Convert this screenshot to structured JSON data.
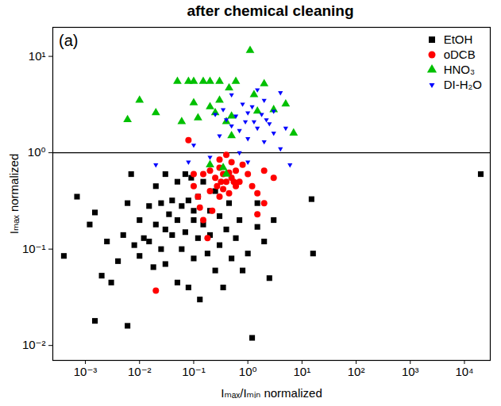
{
  "chart_data": {
    "type": "scatter",
    "title": "after chemical cleaning",
    "panel_label": "(a)",
    "x_label": "Iₘₐₓ/Iₘᵢₙ normalized",
    "y_label": "Iₘₐₓ normalized",
    "log": true,
    "xlim": [
      0.00025,
      30000
    ],
    "ylim": [
      0.007,
      20
    ],
    "xticks": [
      {
        "value": 0.001,
        "label": "10⁻³"
      },
      {
        "value": 0.01,
        "label": "10⁻²"
      },
      {
        "value": 0.1,
        "label": "10⁻¹"
      },
      {
        "value": 1,
        "label": "10⁰"
      },
      {
        "value": 10,
        "label": "10¹"
      },
      {
        "value": 100,
        "label": "10²"
      },
      {
        "value": 1000,
        "label": "10³"
      },
      {
        "value": 10000,
        "label": "10⁴"
      }
    ],
    "yticks": [
      {
        "value": 0.01,
        "label": "10⁻²"
      },
      {
        "value": 0.1,
        "label": "10⁻¹"
      },
      {
        "value": 1,
        "label": "10⁰"
      },
      {
        "value": 10,
        "label": "10¹"
      }
    ],
    "hline": 1,
    "legend": "top-right",
    "series": [
      {
        "name": "EtOH",
        "color": "#000000",
        "marker": "square",
        "x": [
          0.0004,
          0.0007,
          0.0012,
          0.0015,
          0.0015,
          0.002,
          0.0025,
          0.003,
          0.004,
          0.005,
          0.006,
          0.006,
          0.007,
          0.008,
          0.01,
          0.01,
          0.012,
          0.015,
          0.015,
          0.018,
          0.02,
          0.02,
          0.025,
          0.025,
          0.03,
          0.03,
          0.03,
          0.035,
          0.04,
          0.04,
          0.05,
          0.05,
          0.05,
          0.06,
          0.06,
          0.07,
          0.07,
          0.08,
          0.08,
          0.09,
          0.1,
          0.1,
          0.1,
          0.12,
          0.12,
          0.13,
          0.15,
          0.15,
          0.18,
          0.2,
          0.2,
          0.25,
          0.25,
          0.3,
          0.3,
          0.35,
          0.4,
          0.45,
          0.5,
          0.6,
          0.7,
          0.8,
          1,
          1.2,
          1.5,
          1.5,
          2,
          2.5,
          3,
          15,
          16,
          20000
        ],
        "values": [
          0.085,
          0.35,
          0.18,
          0.24,
          0.018,
          0.053,
          0.12,
          0.045,
          0.075,
          0.14,
          0.016,
          0.3,
          0.6,
          0.11,
          0.2,
          0.085,
          0.13,
          0.12,
          0.28,
          0.065,
          0.45,
          0.18,
          0.1,
          0.3,
          0.16,
          0.6,
          0.07,
          0.23,
          0.14,
          0.32,
          0.045,
          0.2,
          0.5,
          0.1,
          0.28,
          0.15,
          0.6,
          0.04,
          0.32,
          0.55,
          0.2,
          0.08,
          0.25,
          0.35,
          0.13,
          0.03,
          0.18,
          0.5,
          0.09,
          0.25,
          0.14,
          0.06,
          0.4,
          0.22,
          0.11,
          0.04,
          0.16,
          0.3,
          0.08,
          0.13,
          0.2,
          0.06,
          0.09,
          0.012,
          0.17,
          0.3,
          0.12,
          0.05,
          0.2,
          0.33,
          0.09,
          0.6
        ]
      },
      {
        "name": "oDCB",
        "color": "#ff0000",
        "marker": "circle",
        "x": [
          0.02,
          0.08,
          0.1,
          0.1,
          0.12,
          0.13,
          0.15,
          0.15,
          0.18,
          0.2,
          0.2,
          0.22,
          0.25,
          0.27,
          0.3,
          0.3,
          0.32,
          0.35,
          0.35,
          0.4,
          0.4,
          0.45,
          0.5,
          0.5,
          0.6,
          0.6,
          0.7,
          0.8,
          1,
          1.2,
          1.5,
          1.5,
          2,
          2,
          3,
          0.3,
          0.45,
          0.55
        ],
        "values": [
          0.037,
          1.35,
          0.6,
          0.45,
          0.35,
          0.27,
          0.2,
          0.6,
          0.13,
          0.65,
          0.4,
          0.25,
          0.55,
          0.45,
          0.35,
          0.7,
          0.5,
          0.6,
          0.42,
          0.5,
          0.95,
          0.38,
          0.55,
          0.8,
          0.65,
          0.45,
          0.5,
          0.75,
          0.6,
          0.45,
          0.38,
          0.23,
          0.65,
          0.3,
          0.55,
          0.85,
          0.62,
          0.5
        ]
      },
      {
        "name": "HNO₃",
        "color": "#00c000",
        "marker": "triangle",
        "x": [
          0.006,
          0.01,
          0.02,
          0.05,
          0.06,
          0.08,
          0.1,
          0.1,
          0.12,
          0.15,
          0.2,
          0.2,
          0.25,
          0.3,
          0.3,
          0.35,
          0.4,
          0.4,
          0.2,
          0.5,
          0.6,
          1.1,
          1.3,
          1.5,
          2,
          3,
          5,
          7,
          0.5,
          0.45
        ],
        "values": [
          2.2,
          3.5,
          2.6,
          5.5,
          2.1,
          5.5,
          3.3,
          5.5,
          2.3,
          5.5,
          3,
          5.5,
          2.6,
          5.5,
          3.5,
          0.7,
          2.1,
          0.6,
          0.75,
          2.4,
          5.5,
          11.5,
          4,
          2.7,
          5.2,
          2.8,
          3.2,
          1.6,
          1.5,
          4.7
        ]
      },
      {
        "name": "DI-H₂O",
        "color": "#0000ff",
        "marker": "triangle-down",
        "x": [
          0.02,
          0.08,
          0.1,
          0.2,
          0.3,
          0.35,
          0.4,
          0.5,
          0.5,
          0.6,
          0.7,
          0.8,
          0.9,
          1,
          1,
          1.2,
          1.3,
          1.5,
          1.5,
          1.8,
          2,
          2,
          2.5,
          3,
          3,
          4,
          4,
          5,
          6,
          1,
          0.7,
          0.25,
          2.2
        ],
        "values": [
          0.75,
          0.8,
          1.2,
          0.9,
          1.5,
          2.8,
          2.2,
          4,
          1.9,
          2.4,
          1.7,
          3.2,
          2.1,
          2.6,
          1.4,
          3,
          2.1,
          4.5,
          1.8,
          2.5,
          1.3,
          3.5,
          2,
          1.6,
          2.7,
          1.1,
          4.2,
          1.8,
          0.75,
          0.8,
          1,
          2.5,
          2.2
        ]
      }
    ]
  }
}
